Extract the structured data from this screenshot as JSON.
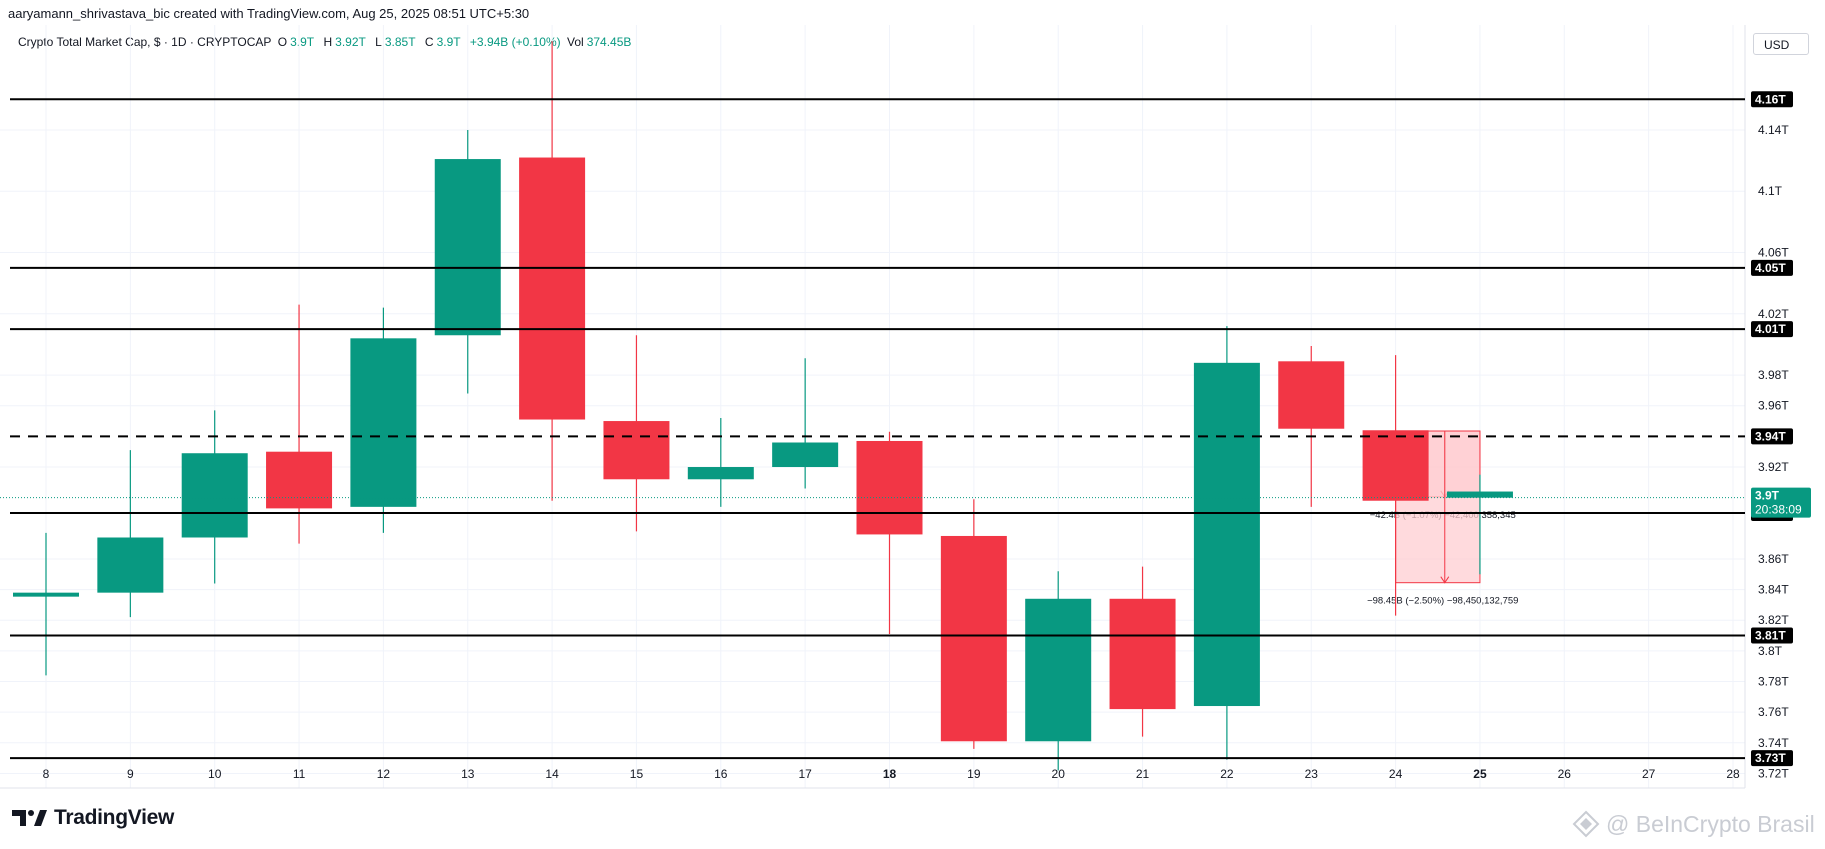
{
  "credit": "aaryamann_shrivastava_bic created with TradingView.com, Aug 25, 2025 08:51 UTC+5:30",
  "legend": {
    "symbol": "Crypto Total Market Cap, $ · 1D · CRYPTOCAP",
    "o_label": "O",
    "o_value": "3.9T",
    "h_label": "H",
    "h_value": "3.92T",
    "l_label": "L",
    "l_value": "3.85T",
    "c_label": "C",
    "c_value": "3.9T",
    "change": "+3.94B (+0.10%)",
    "vol_label": "Vol",
    "vol_value": "374.45B"
  },
  "currency_button": "USD",
  "brand": {
    "name": "TradingView",
    "logo_icon": "tradingview-logo-icon"
  },
  "watermark": {
    "text": "@ BeInCrypto Brasil",
    "icon": "beincrypto-logo-icon"
  },
  "chart_data": {
    "type": "candlestick",
    "colors": {
      "up": "#089981",
      "down": "#f23645",
      "level_line": "#000000",
      "price_label_bg": "#000000",
      "last_price_bg": "#089981",
      "grid": "#f0f3fa"
    },
    "y_axis": {
      "ylim": [
        3.7105,
        4.2085
      ],
      "ticks": [
        {
          "value": 4.14,
          "label": "4.14T"
        },
        {
          "value": 4.1,
          "label": "4.1T"
        },
        {
          "value": 4.06,
          "label": "4.06T"
        },
        {
          "value": 4.02,
          "label": "4.02T"
        },
        {
          "value": 3.98,
          "label": "3.98T"
        },
        {
          "value": 3.96,
          "label": "3.96T"
        },
        {
          "value": 3.92,
          "label": "3.92T"
        },
        {
          "value": 3.86,
          "label": "3.86T"
        },
        {
          "value": 3.84,
          "label": "3.84T"
        },
        {
          "value": 3.82,
          "label": "3.82T"
        },
        {
          "value": 3.8,
          "label": "3.8T"
        },
        {
          "value": 3.78,
          "label": "3.78T"
        },
        {
          "value": 3.76,
          "label": "3.76T"
        },
        {
          "value": 3.74,
          "label": "3.74T"
        },
        {
          "value": 3.72,
          "label": "3.72T"
        }
      ]
    },
    "x_axis": {
      "labels": [
        "8",
        "9",
        "10",
        "11",
        "12",
        "13",
        "14",
        "15",
        "16",
        "17",
        "18",
        "19",
        "20",
        "21",
        "22",
        "23",
        "24",
        "25",
        "26",
        "27",
        "28"
      ],
      "bold_labels": [
        "18",
        "25"
      ]
    },
    "candles": [
      {
        "day": "8",
        "open": 3.836,
        "high": 3.877,
        "low": 3.784,
        "close": 3.838
      },
      {
        "day": "9",
        "open": 3.838,
        "high": 3.931,
        "low": 3.822,
        "close": 3.874
      },
      {
        "day": "10",
        "open": 3.874,
        "high": 3.957,
        "low": 3.844,
        "close": 3.929
      },
      {
        "day": "11",
        "open": 3.93,
        "high": 4.026,
        "low": 3.87,
        "close": 3.893
      },
      {
        "day": "12",
        "open": 3.894,
        "high": 4.024,
        "low": 3.877,
        "close": 4.004
      },
      {
        "day": "13",
        "open": 4.006,
        "high": 4.14,
        "low": 3.968,
        "close": 4.121
      },
      {
        "day": "14",
        "open": 4.122,
        "high": 4.198,
        "low": 3.898,
        "close": 3.951
      },
      {
        "day": "15",
        "open": 3.95,
        "high": 4.006,
        "low": 3.878,
        "close": 3.912
      },
      {
        "day": "16",
        "open": 3.912,
        "high": 3.952,
        "low": 3.894,
        "close": 3.92
      },
      {
        "day": "17",
        "open": 3.92,
        "high": 3.991,
        "low": 3.906,
        "close": 3.936
      },
      {
        "day": "18",
        "open": 3.937,
        "high": 3.943,
        "low": 3.811,
        "close": 3.876
      },
      {
        "day": "19",
        "open": 3.875,
        "high": 3.899,
        "low": 3.736,
        "close": 3.741
      },
      {
        "day": "20",
        "open": 3.741,
        "high": 3.852,
        "low": 3.722,
        "close": 3.834
      },
      {
        "day": "21",
        "open": 3.834,
        "high": 3.855,
        "low": 3.744,
        "close": 3.762
      },
      {
        "day": "22",
        "open": 3.764,
        "high": 4.012,
        "low": 3.729,
        "close": 3.988
      },
      {
        "day": "23",
        "open": 3.989,
        "high": 3.999,
        "low": 3.894,
        "close": 3.945
      },
      {
        "day": "24",
        "open": 3.944,
        "high": 3.993,
        "low": 3.823,
        "close": 3.898
      },
      {
        "day": "25",
        "open": 3.9,
        "high": 3.915,
        "low": 3.85,
        "close": 3.904
      }
    ],
    "levels": [
      {
        "value": 4.16,
        "label": "4.16T",
        "style": "solid"
      },
      {
        "value": 4.05,
        "label": "4.05T",
        "style": "solid"
      },
      {
        "value": 4.01,
        "label": "4.01T",
        "style": "solid"
      },
      {
        "value": 3.94,
        "label": "3.94T",
        "style": "dashed"
      },
      {
        "value": 3.89,
        "label": "3.89T",
        "style": "solid"
      },
      {
        "value": 3.81,
        "label": "3.81T",
        "style": "solid"
      },
      {
        "value": 3.73,
        "label": "3.73T",
        "style": "solid"
      }
    ],
    "last_price": {
      "value": 3.9,
      "label": "3.9T",
      "countdown": "20:38:09"
    },
    "measurements": [
      {
        "from_day": "24",
        "to_day": "25",
        "from_value": 3.9435,
        "to_value": 3.9005,
        "label": "−42.4B (−1.07%) −42,400,358,345",
        "fill": "#ffcdd2"
      },
      {
        "from_day": "24",
        "to_day": "25",
        "from_value": 3.9435,
        "to_value": 3.8445,
        "label": "−98.45B (−2.50%) −98,450,132,759",
        "fill": "#ffcdd2"
      }
    ]
  }
}
